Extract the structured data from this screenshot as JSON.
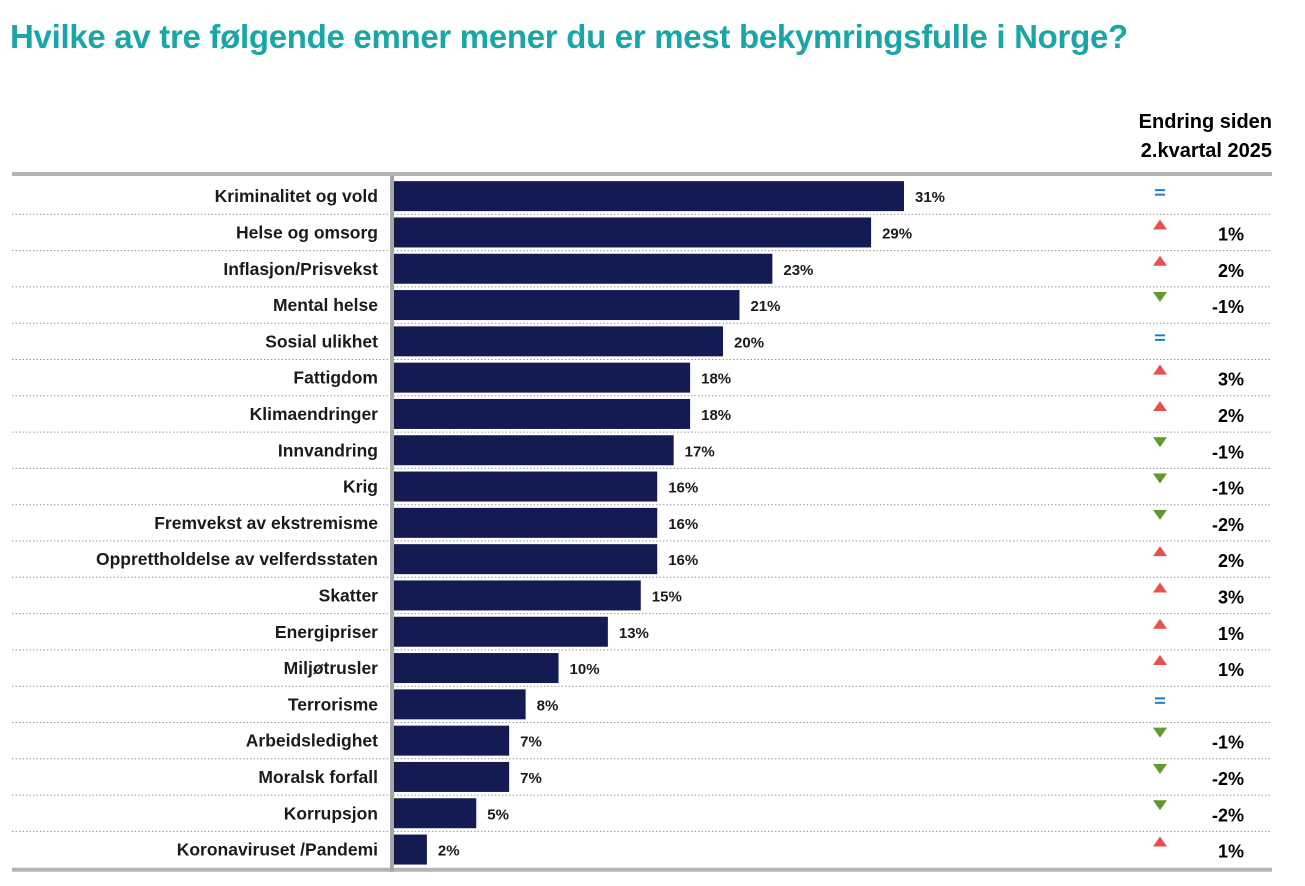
{
  "title": "Hvilke av tre følgende emner mener du er mest bekymringsfulle i Norge?",
  "change_header": {
    "line1": "Endring siden",
    "line2": "2.kvartal 2025"
  },
  "colors": {
    "bar": "#141a52",
    "title": "#1aa6a6",
    "up": "#e8504f",
    "down": "#5e9a2c",
    "equal": "#1f7fc6"
  },
  "chart_data": {
    "type": "bar",
    "orientation": "horizontal",
    "categories": [
      "Kriminalitet og vold",
      "Helse og omsorg",
      "Inflasjon/Prisvekst",
      "Mental helse",
      "Sosial ulikhet",
      "Fattigdom",
      "Klimaendringer",
      "Innvandring",
      "Krig",
      "Fremvekst av ekstremisme",
      "Opprettholdelse av velferdsstaten",
      "Skatter",
      "Energipriser",
      "Miljøtrusler",
      "Terrorisme",
      "Arbeidsledighet",
      "Moralsk forfall",
      "Korrupsjon",
      "Koronaviruset /Pandemi"
    ],
    "values": [
      31,
      29,
      23,
      21,
      20,
      18,
      18,
      17,
      16,
      16,
      16,
      15,
      13,
      10,
      8,
      7,
      7,
      5,
      2
    ],
    "value_labels": [
      "31%",
      "29%",
      "23%",
      "21%",
      "20%",
      "18%",
      "18%",
      "17%",
      "16%",
      "16%",
      "16%",
      "15%",
      "13%",
      "10%",
      "8%",
      "7%",
      "7%",
      "5%",
      "2%"
    ],
    "change_direction": [
      "equal",
      "up",
      "up",
      "down",
      "equal",
      "up",
      "up",
      "down",
      "down",
      "down",
      "up",
      "up",
      "up",
      "up",
      "equal",
      "down",
      "down",
      "down",
      "up"
    ],
    "change_labels": [
      "",
      "1%",
      "2%",
      "-1%",
      "",
      "3%",
      "2%",
      "-1%",
      "-1%",
      "-2%",
      "2%",
      "3%",
      "1%",
      "1%",
      "",
      "-1%",
      "-2%",
      "-2%",
      "1%"
    ],
    "xlim": [
      0,
      31
    ],
    "grid": false,
    "unit": "%"
  }
}
